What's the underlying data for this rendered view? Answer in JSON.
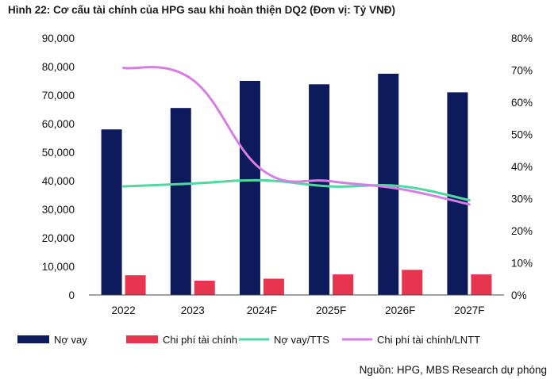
{
  "chart_title": "Hình 22: Cơ cấu tài chính của HPG sau khi hoàn thiện DQ2 (Đơn vị: Tỷ VNĐ)",
  "source": "Nguồn: HPG, MBS Research dự phóng",
  "colors": {
    "no_vay": "#0d1b5c",
    "chi_phi": "#e8354f",
    "no_vay_tts": "#4fd9a0",
    "chi_phi_lntt": "#d77ee6",
    "axis": "#444444"
  },
  "chart_data": {
    "type": "bar+line",
    "categories": [
      "2022",
      "2023",
      "2024F",
      "2025F",
      "2026F",
      "2027F"
    ],
    "left_axis": {
      "ylim": [
        0,
        90000
      ],
      "ticks": [
        0,
        10000,
        20000,
        30000,
        40000,
        50000,
        60000,
        70000,
        80000,
        90000
      ],
      "tick_labels": [
        "0",
        "10,000",
        "20,000",
        "30,000",
        "40,000",
        "50,000",
        "60,000",
        "70,000",
        "80,000",
        "90,000"
      ]
    },
    "right_axis": {
      "ylim": [
        0,
        80
      ],
      "ticks": [
        0,
        10,
        20,
        30,
        40,
        50,
        60,
        70,
        80
      ],
      "tick_labels": [
        "0%",
        "10%",
        "20%",
        "30%",
        "40%",
        "50%",
        "60%",
        "70%",
        "80%"
      ]
    },
    "series": [
      {
        "name": "Nợ vay",
        "kind": "bar",
        "axis": "left",
        "values": [
          58000,
          65500,
          75000,
          73800,
          77500,
          71000
        ]
      },
      {
        "name": "Chi phí tài chính",
        "kind": "bar",
        "axis": "left",
        "values": [
          6900,
          5000,
          5700,
          7200,
          8800,
          7200
        ]
      },
      {
        "name": "Nợ vay/TTS",
        "kind": "line",
        "axis": "right",
        "values": [
          33.8,
          34.7,
          35.7,
          33.8,
          33.9,
          29.5
        ]
      },
      {
        "name": "Chi phí tài chính/LNTT",
        "kind": "line",
        "axis": "right",
        "values": [
          70.7,
          67.0,
          39.0,
          35.4,
          33.0,
          28.2
        ]
      }
    ],
    "legend": [
      "Nợ vay",
      "Chi phí tài chính",
      "Nợ vay/TTS",
      "Chi phí tài chính/LNTT"
    ]
  }
}
